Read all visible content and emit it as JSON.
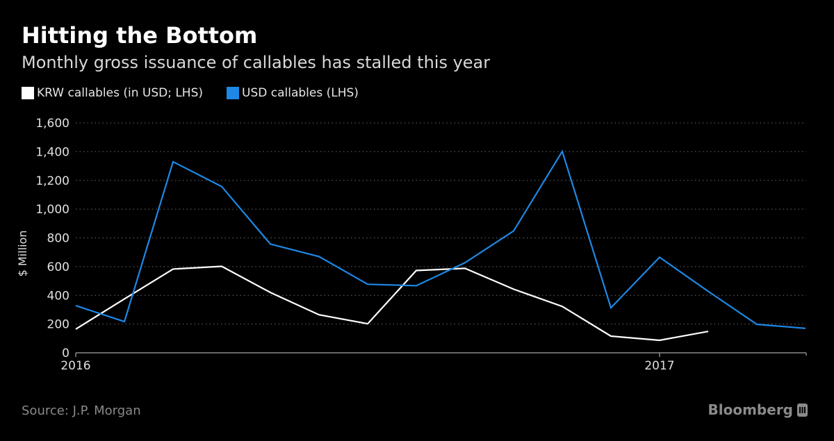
{
  "chart_data": {
    "type": "line",
    "title": "Hitting the Bottom",
    "subtitle": "Monthly gross issuance of callables has stalled this year",
    "ylabel": "$ Million",
    "xlabel": "",
    "ylim": [
      0,
      1600
    ],
    "yticks": [
      0,
      200,
      400,
      600,
      800,
      "1,000",
      "1,200",
      "1,400",
      "1,600"
    ],
    "ytick_values": [
      0,
      200,
      400,
      600,
      800,
      1000,
      1200,
      1400,
      1600
    ],
    "xticks": [
      "2016",
      "2017"
    ],
    "xtick_month_index": [
      0,
      12
    ],
    "x": [
      "2016-01",
      "2016-02",
      "2016-03",
      "2016-04",
      "2016-05",
      "2016-06",
      "2016-07",
      "2016-08",
      "2016-09",
      "2016-10",
      "2016-11",
      "2016-12",
      "2017-01",
      "2017-02",
      "2017-03",
      "2017-04"
    ],
    "grid": true,
    "legend_position": "top-left",
    "series": [
      {
        "name": "KRW callables (in USD; LHS)",
        "color": "#ffffff",
        "values": [
          165,
          375,
          583,
          602,
          420,
          265,
          202,
          573,
          588,
          443,
          323,
          116,
          87,
          149,
          null,
          null
        ]
      },
      {
        "name": "USD callables (LHS)",
        "color": "#1e88e5",
        "values": [
          328,
          217,
          1330,
          1157,
          757,
          670,
          477,
          467,
          627,
          848,
          1402,
          313,
          665,
          428,
          198,
          170
        ]
      }
    ]
  },
  "footer": {
    "source": "Source: J.P. Morgan",
    "brand": "Bloomberg"
  }
}
